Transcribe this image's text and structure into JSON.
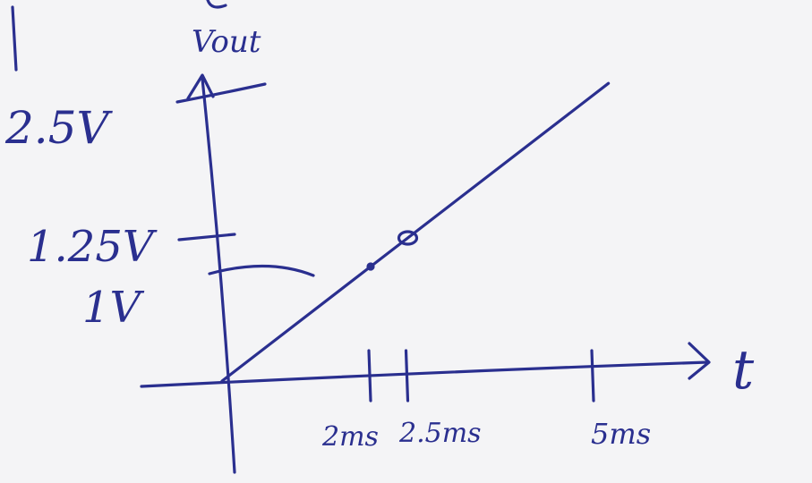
{
  "chart_data": {
    "type": "line",
    "title": "",
    "ylabel": "Vout",
    "xlabel": "t",
    "x_ticks": [
      "2ms",
      "2.5ms",
      "5ms"
    ],
    "y_ticks": [
      "2.5V",
      "1.25V",
      "1V"
    ],
    "xlim": [
      0,
      5.5
    ],
    "ylim": [
      0,
      2.9
    ],
    "grid": false,
    "series": [
      {
        "x": [
          0,
          2,
          2.5,
          5
        ],
        "y": [
          0,
          1,
          1.25,
          2.5
        ]
      }
    ],
    "marked_points": [
      {
        "x": 2,
        "y": 1
      },
      {
        "x": 2.5,
        "y": 1.25
      }
    ],
    "colors": {
      "ink": "#2a2f8f",
      "paper": "#f4f4f6"
    }
  }
}
